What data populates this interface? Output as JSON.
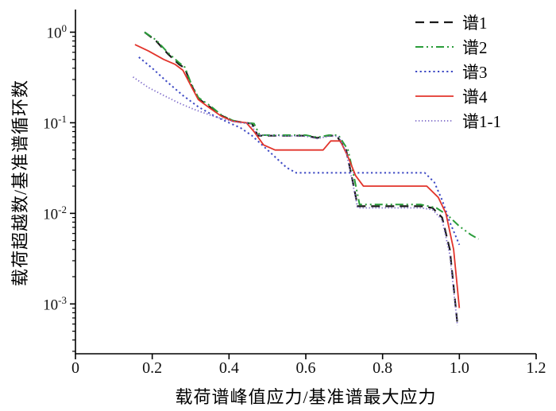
{
  "figure": {
    "background": "#ffffff",
    "axis_color": "#000000"
  },
  "chart_data": {
    "type": "line",
    "title": "",
    "xlabel": "载荷谱峰值应力/基准谱最大应力",
    "ylabel": "载荷超越数/基准谱循环数",
    "grid": false,
    "legend_position": "top-right",
    "x_axis": {
      "min": 0,
      "max": 1.2,
      "tick_values": [
        0,
        0.2,
        0.4,
        0.6,
        0.8,
        1.0,
        1.2
      ],
      "tick_labels": [
        "0",
        "0.2",
        "0.4",
        "0.6",
        "0.8",
        "1.0",
        "1.2"
      ]
    },
    "y_axis": {
      "scale": "log",
      "min_exp": -3.55,
      "max_exp": 0.25,
      "tick_exponents": [
        0,
        -1,
        -2,
        -3
      ]
    },
    "series": [
      {
        "name": "谱1",
        "color": "#1a1a1a",
        "dash": "11 7",
        "width": 2.2,
        "points": [
          [
            0.18,
            1.0
          ],
          [
            0.21,
            0.8
          ],
          [
            0.24,
            0.58
          ],
          [
            0.27,
            0.44
          ],
          [
            0.285,
            0.4
          ],
          [
            0.3,
            0.27
          ],
          [
            0.32,
            0.185
          ],
          [
            0.35,
            0.15
          ],
          [
            0.38,
            0.12
          ],
          [
            0.41,
            0.105
          ],
          [
            0.44,
            0.1
          ],
          [
            0.46,
            0.098
          ],
          [
            0.475,
            0.072
          ],
          [
            0.6,
            0.072
          ],
          [
            0.63,
            0.068
          ],
          [
            0.655,
            0.072
          ],
          [
            0.68,
            0.072
          ],
          [
            0.705,
            0.05
          ],
          [
            0.72,
            0.025
          ],
          [
            0.735,
            0.012
          ],
          [
            0.9,
            0.012
          ],
          [
            0.93,
            0.0115
          ],
          [
            0.955,
            0.009
          ],
          [
            0.975,
            0.004
          ],
          [
            0.995,
            0.0006
          ]
        ]
      },
      {
        "name": "谱2",
        "color": "#2a9d3a",
        "dash": "10 4 2 4 2 4",
        "width": 2,
        "points": [
          [
            0.18,
            1.0
          ],
          [
            0.21,
            0.82
          ],
          [
            0.24,
            0.6
          ],
          [
            0.27,
            0.46
          ],
          [
            0.285,
            0.41
          ],
          [
            0.3,
            0.28
          ],
          [
            0.32,
            0.19
          ],
          [
            0.35,
            0.155
          ],
          [
            0.38,
            0.122
          ],
          [
            0.41,
            0.106
          ],
          [
            0.44,
            0.1
          ],
          [
            0.465,
            0.098
          ],
          [
            0.48,
            0.073
          ],
          [
            0.6,
            0.073
          ],
          [
            0.63,
            0.069
          ],
          [
            0.66,
            0.073
          ],
          [
            0.685,
            0.073
          ],
          [
            0.71,
            0.05
          ],
          [
            0.725,
            0.026
          ],
          [
            0.74,
            0.0125
          ],
          [
            0.9,
            0.0125
          ],
          [
            0.94,
            0.0115
          ],
          [
            0.97,
            0.0095
          ],
          [
            1.0,
            0.0072
          ],
          [
            1.03,
            0.0058
          ],
          [
            1.05,
            0.0052
          ]
        ]
      },
      {
        "name": "谱3",
        "color": "#3d49c4",
        "dash": "2.2 3.4",
        "width": 2,
        "points": [
          [
            0.165,
            0.53
          ],
          [
            0.2,
            0.4
          ],
          [
            0.24,
            0.28
          ],
          [
            0.28,
            0.2
          ],
          [
            0.32,
            0.15
          ],
          [
            0.36,
            0.12
          ],
          [
            0.4,
            0.1
          ],
          [
            0.43,
            0.088
          ],
          [
            0.46,
            0.072
          ],
          [
            0.49,
            0.055
          ],
          [
            0.52,
            0.042
          ],
          [
            0.55,
            0.032
          ],
          [
            0.575,
            0.028
          ],
          [
            0.91,
            0.028
          ],
          [
            0.935,
            0.022
          ],
          [
            0.955,
            0.014
          ],
          [
            0.975,
            0.008
          ],
          [
            1.0,
            0.0045
          ]
        ]
      },
      {
        "name": "谱4",
        "color": "#e2342b",
        "dash": "",
        "width": 1.8,
        "points": [
          [
            0.155,
            0.73
          ],
          [
            0.19,
            0.62
          ],
          [
            0.23,
            0.5
          ],
          [
            0.26,
            0.44
          ],
          [
            0.28,
            0.38
          ],
          [
            0.3,
            0.26
          ],
          [
            0.32,
            0.18
          ],
          [
            0.35,
            0.145
          ],
          [
            0.38,
            0.118
          ],
          [
            0.41,
            0.104
          ],
          [
            0.445,
            0.1
          ],
          [
            0.465,
            0.08
          ],
          [
            0.49,
            0.057
          ],
          [
            0.52,
            0.05
          ],
          [
            0.645,
            0.05
          ],
          [
            0.665,
            0.063
          ],
          [
            0.69,
            0.063
          ],
          [
            0.71,
            0.042
          ],
          [
            0.73,
            0.026
          ],
          [
            0.75,
            0.02
          ],
          [
            0.915,
            0.02
          ],
          [
            0.945,
            0.015
          ],
          [
            0.965,
            0.01
          ],
          [
            0.985,
            0.004
          ],
          [
            1.0,
            0.0009
          ]
        ]
      },
      {
        "name": "谱1-1",
        "color": "#7b68c8",
        "dash": "1.3 2.7",
        "width": 1.8,
        "points": [
          [
            0.15,
            0.32
          ],
          [
            0.19,
            0.245
          ],
          [
            0.23,
            0.2
          ],
          [
            0.27,
            0.165
          ],
          [
            0.31,
            0.14
          ],
          [
            0.35,
            0.122
          ],
          [
            0.39,
            0.108
          ],
          [
            0.43,
            0.1
          ],
          [
            0.455,
            0.098
          ],
          [
            0.475,
            0.073
          ],
          [
            0.6,
            0.071
          ],
          [
            0.63,
            0.067
          ],
          [
            0.66,
            0.071
          ],
          [
            0.685,
            0.071
          ],
          [
            0.705,
            0.048
          ],
          [
            0.72,
            0.024
          ],
          [
            0.735,
            0.0115
          ],
          [
            0.9,
            0.0115
          ],
          [
            0.93,
            0.011
          ],
          [
            0.955,
            0.0085
          ],
          [
            0.975,
            0.0035
          ],
          [
            0.995,
            0.00058
          ]
        ]
      }
    ]
  }
}
